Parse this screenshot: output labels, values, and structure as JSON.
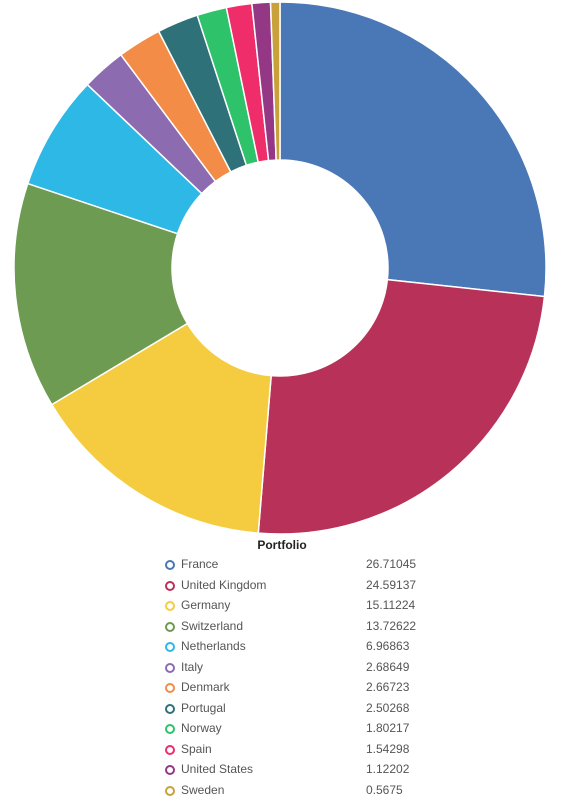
{
  "chart_data": {
    "type": "pie",
    "donut": true,
    "title": "",
    "legend_title": "Portfolio",
    "legend_placement": "bottom",
    "categories": [
      "France",
      "United Kingdom",
      "Germany",
      "Switzerland",
      "Netherlands",
      "Italy",
      "Denmark",
      "Portugal",
      "Norway",
      "Spain",
      "United States",
      "Sweden"
    ],
    "values": [
      26.71045,
      24.59137,
      15.11224,
      13.72622,
      6.96863,
      2.68649,
      2.66723,
      2.50268,
      1.80217,
      1.54298,
      1.12202,
      0.5675
    ],
    "value_labels": [
      "26.71045",
      "24.59137",
      "15.11224",
      "13.72622",
      "6.96863",
      "2.68649",
      "2.66723",
      "2.50268",
      "1.80217",
      "1.54298",
      "1.12202",
      "0.5675"
    ],
    "colors": [
      "#4a78b6",
      "#b83159",
      "#f5cc40",
      "#6d9b52",
      "#2db8e6",
      "#8c6bb1",
      "#f28c46",
      "#2e7178",
      "#2ec26a",
      "#ee2d6a",
      "#943886",
      "#c9a13a"
    ]
  }
}
